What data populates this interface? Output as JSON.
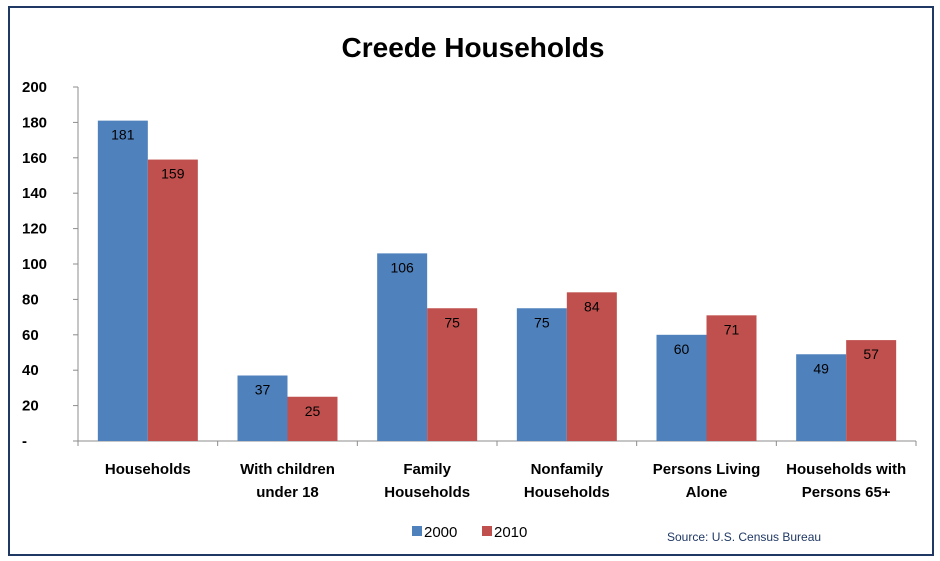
{
  "chart_data": {
    "type": "bar",
    "title": "Creede Households",
    "categories": [
      [
        "Households"
      ],
      [
        "With children",
        "under 18"
      ],
      [
        "Family",
        "Households"
      ],
      [
        "Nonfamily",
        "Households"
      ],
      [
        "Persons Living",
        "Alone"
      ],
      [
        "Households with",
        "Persons 65+"
      ]
    ],
    "series": [
      {
        "name": "2000",
        "color": "#4f81bd",
        "values": [
          181,
          37,
          106,
          75,
          60,
          49
        ]
      },
      {
        "name": "2010",
        "color": "#c0504d",
        "values": [
          159,
          25,
          75,
          84,
          71,
          57
        ]
      }
    ],
    "ylim": [
      0,
      200
    ],
    "yticks": [
      0,
      20,
      40,
      60,
      80,
      100,
      120,
      140,
      160,
      180,
      200
    ],
    "ytick_labels": [
      "-",
      "20",
      "40",
      "60",
      "80",
      "100",
      "120",
      "140",
      "160",
      "180",
      "200"
    ],
    "grid": false,
    "legend_position": "bottom",
    "source": "Source: U.S. Census Bureau"
  }
}
